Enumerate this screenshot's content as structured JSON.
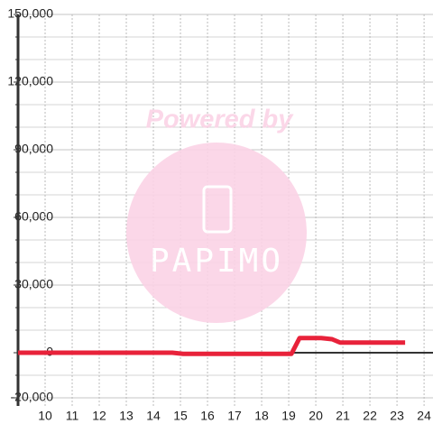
{
  "chart_data": {
    "type": "line",
    "watermark": {
      "text": "Powered by",
      "logo": "PAPIMO"
    },
    "x": [
      9,
      14.7,
      15.1,
      18.9,
      19.1,
      19.4,
      20.2,
      20.6,
      20.9,
      23.3
    ],
    "series": [
      {
        "color": "#e8223a",
        "values": [
          0,
          0,
          -500,
          -500,
          -500,
          6500,
          6500,
          6000,
          4500,
          4500
        ]
      }
    ],
    "xlim": [
      9,
      24.33
    ],
    "xticks": [
      10,
      11,
      12,
      13,
      14,
      15,
      16,
      17,
      18,
      19,
      20,
      21,
      22,
      23,
      24
    ],
    "ylim": [
      -20000,
      150000
    ],
    "yticks": [
      {
        "value": -20000,
        "label": "-20,000"
      },
      0,
      {
        "value": 30000,
        "label": "30,000"
      },
      {
        "value": 60000,
        "label": "60,000"
      },
      {
        "value": 90000,
        "label": "90,000"
      },
      {
        "value": 120000,
        "label": "120,000"
      },
      {
        "value": 150000,
        "label": "150,000"
      }
    ],
    "y_minor_ticks": [
      -10000,
      10000,
      20000,
      40000,
      50000,
      70000,
      80000,
      100000,
      110000,
      130000,
      140000
    ],
    "grid": true
  }
}
